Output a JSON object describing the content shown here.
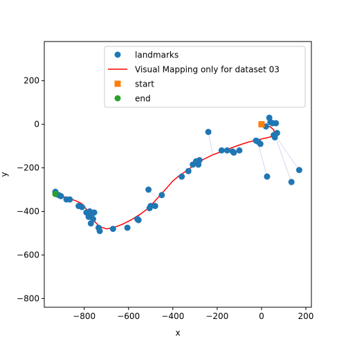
{
  "chart_data": {
    "type": "scatter",
    "title": "",
    "xlabel": "x",
    "ylabel": "y",
    "xlim": [
      -980,
      225
    ],
    "ylim": [
      -840,
      380
    ],
    "xticks": [
      -800,
      -600,
      -400,
      -200,
      0,
      200
    ],
    "yticks": [
      -800,
      -600,
      -400,
      -200,
      0,
      200
    ],
    "xtick_labels": [
      "−800",
      "−600",
      "−400",
      "−200",
      "0",
      "200"
    ],
    "ytick_labels": [
      "−800",
      "−600",
      "−400",
      "−200",
      "0",
      "200"
    ],
    "grid": false,
    "legend_position": "top-right",
    "legend": [
      {
        "label": "landmarks",
        "marker": "circle",
        "color": "#1f77b4"
      },
      {
        "label": "Visual Mapping only for dataset 03",
        "marker": "line",
        "color": "#ff0000"
      },
      {
        "label": "start",
        "marker": "square",
        "color": "#ff7f0e"
      },
      {
        "label": "end",
        "marker": "circle",
        "color": "#2ca02c"
      }
    ],
    "series": [
      {
        "name": "landmarks",
        "kind": "scatter",
        "color": "#1f77b4",
        "x": [
          -930,
          -915,
          -905,
          -880,
          -865,
          -825,
          -810,
          -790,
          -780,
          -775,
          -770,
          -765,
          -760,
          -755,
          -735,
          -730,
          -670,
          -605,
          -560,
          -555,
          -510,
          -505,
          -500,
          -480,
          -450,
          -360,
          -330,
          -310,
          -295,
          -285,
          -280,
          -240,
          -180,
          -155,
          -130,
          -125,
          -100,
          -25,
          -15,
          -5,
          20,
          25,
          35,
          40,
          50,
          55,
          60,
          65,
          70,
          135,
          170
        ],
        "y": [
          -310,
          -325,
          -330,
          -345,
          -345,
          -375,
          -380,
          -405,
          -425,
          -400,
          -455,
          -410,
          -435,
          -405,
          -475,
          -490,
          -480,
          -475,
          -435,
          -440,
          -300,
          -385,
          -375,
          -375,
          -325,
          -240,
          -215,
          -185,
          -170,
          -185,
          -165,
          -35,
          -120,
          -120,
          -125,
          -130,
          -120,
          -75,
          -80,
          -90,
          -10,
          -240,
          30,
          10,
          5,
          -50,
          -60,
          5,
          -40,
          -265,
          -210
        ]
      },
      {
        "name": "Visual Mapping only for dataset 03",
        "kind": "line",
        "color": "#ff0000",
        "x": [
          -930,
          -900,
          -870,
          -840,
          -810,
          -790,
          -770,
          -750,
          -730,
          -700,
          -670,
          -630,
          -590,
          -550,
          -510,
          -470,
          -430,
          -400,
          -370,
          -340,
          -300,
          -260,
          -220,
          -180,
          -140,
          -100,
          -60,
          -20,
          10,
          40,
          60,
          55,
          40,
          20,
          0
        ],
        "y": [
          -320,
          -330,
          -340,
          -350,
          -365,
          -390,
          -420,
          -450,
          -470,
          -480,
          -475,
          -460,
          -440,
          -415,
          -385,
          -340,
          -295,
          -260,
          -235,
          -215,
          -185,
          -160,
          -140,
          -125,
          -110,
          -95,
          -82,
          -72,
          -65,
          -58,
          -50,
          -25,
          -12,
          -5,
          0
        ]
      },
      {
        "name": "start",
        "kind": "scatter",
        "marker": "square",
        "color": "#ff7f0e",
        "x": [
          0
        ],
        "y": [
          0
        ]
      },
      {
        "name": "end",
        "kind": "scatter",
        "marker": "circle",
        "color": "#2ca02c",
        "x": [
          -930
        ],
        "y": [
          -320
        ]
      }
    ]
  }
}
